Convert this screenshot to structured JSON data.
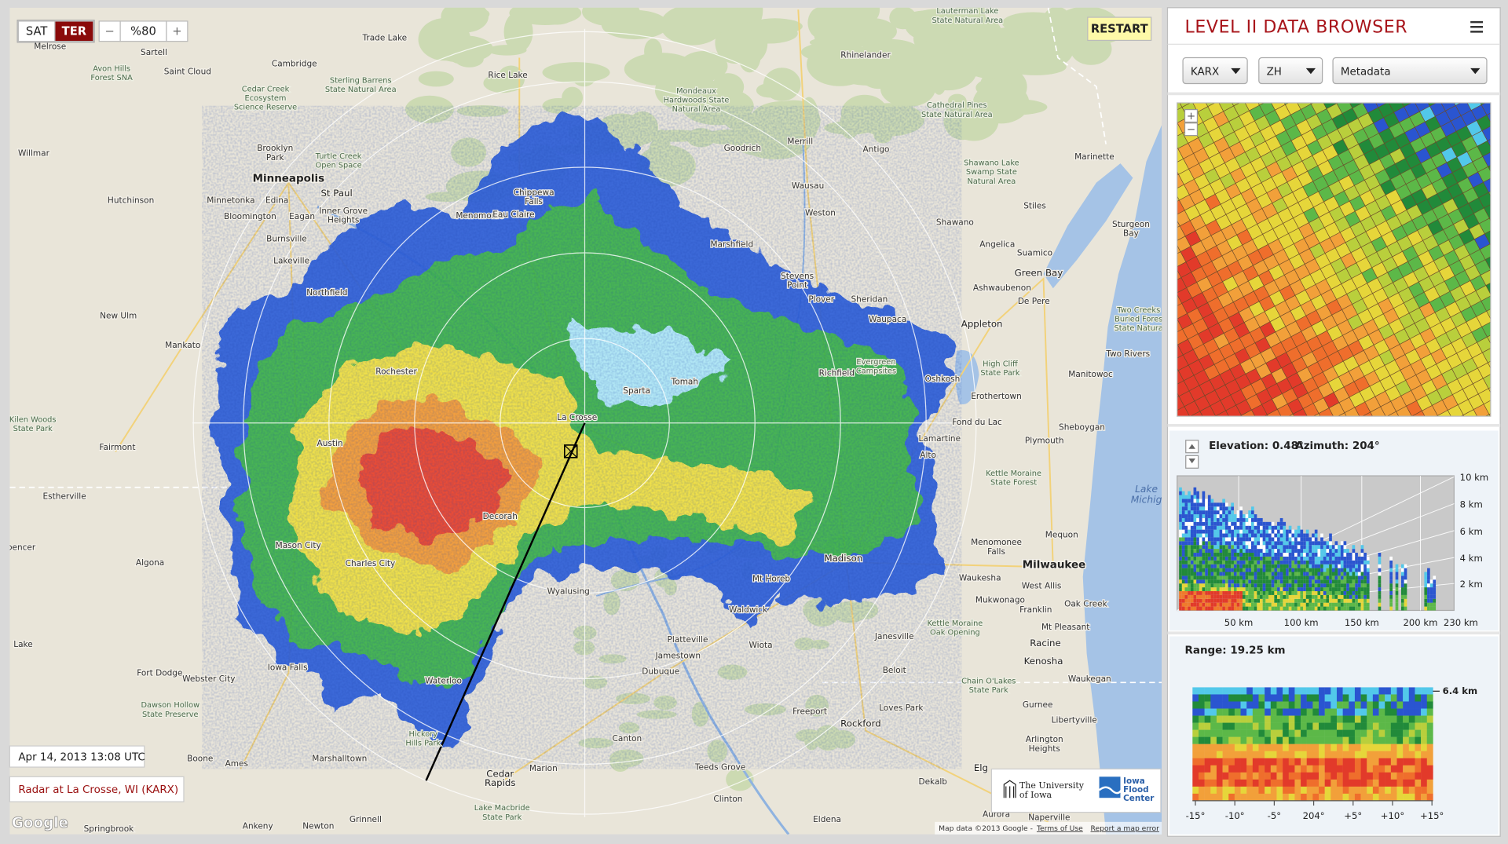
{
  "map": {
    "layers": [
      "SAT",
      "TER"
    ],
    "zoom_out": "−",
    "opacity": "%80",
    "zoom_in": "+",
    "restart": "RESTART",
    "labels": [
      [
        "Melrose"
      ],
      [
        "Sartell"
      ],
      [
        "Saint Cloud"
      ],
      [
        "Avon Hills",
        "Forest SNA"
      ],
      [
        "Trade Lake"
      ],
      [
        "Cambridge"
      ],
      [
        "Cedar Creek",
        "Ecosystem",
        "Science Reserve"
      ],
      [
        "Sterling Barrens",
        "State Natural Area"
      ],
      [
        "Rice Lake"
      ],
      [
        "Mondeaux",
        "Hardwoods State",
        "Natural Area"
      ],
      [
        "Lauterman Lake",
        "State Natural Area"
      ],
      [
        "Rhinelander"
      ],
      [
        "Cathedral Pines",
        "State Natural Area"
      ],
      [
        "Willmar"
      ],
      [
        "Brooklyn",
        "Park"
      ],
      [
        "Minneapolis"
      ],
      [
        "Turtle Creek",
        "Open Space"
      ],
      [
        "St Paul"
      ],
      [
        "Hutchinson"
      ],
      [
        "Minnetonka"
      ],
      [
        "Edina"
      ],
      [
        "Inner Grove",
        "Heights"
      ],
      [
        "Bloomington"
      ],
      [
        "Eagan"
      ],
      [
        "Burnsville"
      ],
      [
        "Lakeville"
      ],
      [
        "Northfield"
      ],
      [
        "New Ulm"
      ],
      [
        "Mankato"
      ],
      [
        "Goodrich"
      ],
      [
        "Merrill"
      ],
      [
        "Antigo"
      ],
      [
        "Wausau"
      ],
      [
        "Weston"
      ],
      [
        "Chippewa",
        "Falls"
      ],
      [
        "Menomonie"
      ],
      [
        "Eau Claire"
      ],
      [
        "Marshfield"
      ],
      [
        "Stevens",
        "Point"
      ],
      [
        "Plover"
      ],
      [
        "Shawano"
      ],
      [
        "Angelica"
      ],
      [
        "Suamico"
      ],
      [
        "Stiles"
      ],
      [
        "Sturgeon",
        "Bay"
      ],
      [
        "Marinette"
      ],
      [
        "Shawano Lake",
        "Swamp State",
        "Natural Area"
      ],
      [
        "Green Bay"
      ],
      [
        "Ashwaubenon"
      ],
      [
        "De Pere"
      ],
      [
        "Appleton"
      ],
      [
        "Waupaca"
      ],
      [
        "Sheridan"
      ],
      [
        "Two Creeks",
        "Buried Fores",
        "State Natura"
      ],
      [
        "Two Rivers"
      ],
      [
        "Manitowoc"
      ],
      [
        "High Cliff",
        "State Park"
      ],
      [
        "Oshkosh"
      ],
      [
        "Erothertown"
      ],
      [
        "Fond du Lac"
      ],
      [
        "Sheboygan"
      ],
      [
        "Richfield"
      ],
      [
        "Evergreen",
        "Campsites"
      ],
      [
        "Lamartine"
      ],
      [
        "Plymouth"
      ],
      [
        "Alto"
      ],
      [
        "Kettle Moraine",
        "State Forest"
      ],
      [
        "Lake",
        "Michig"
      ],
      [
        "Mequon"
      ],
      [
        "Menomonee",
        "Falls"
      ],
      [
        "Milwaukee"
      ],
      [
        "Waukesha"
      ],
      [
        "West Allis"
      ],
      [
        "Mukwonago"
      ],
      [
        "Franklin"
      ],
      [
        "Oak Creek"
      ],
      [
        "Mt Pleasant"
      ],
      [
        "Racine"
      ],
      [
        "Kettle Moraine",
        "Oak Opening"
      ],
      [
        "Kenosha"
      ],
      [
        "Chain O'Lakes",
        "State Park"
      ],
      [
        "Waukegan"
      ],
      [
        "Gurnee"
      ],
      [
        "Libertyville"
      ],
      [
        "Arlington",
        "Heights"
      ],
      [
        "Madison"
      ],
      [
        "Mt Horeb"
      ],
      [
        "Waldwick"
      ],
      [
        "Janesville"
      ],
      [
        "Beloit"
      ],
      [
        "Platteville"
      ],
      [
        "Wiota"
      ],
      [
        "Jamestown"
      ],
      [
        "Dubuque"
      ],
      [
        "Freeport"
      ],
      [
        "Rockford"
      ],
      [
        "Loves Park"
      ],
      [
        "Canton"
      ],
      [
        "Teeds Grove"
      ],
      [
        "Clinton"
      ],
      [
        "Dekalb"
      ],
      [
        "Elg"
      ],
      [
        "Aurora"
      ],
      [
        "Naperville"
      ],
      [
        "Eldena"
      ],
      [
        "Marion"
      ],
      [
        "Cedar",
        "Rapids"
      ],
      [
        "Lake Macbride",
        "State Park"
      ],
      [
        "Grinnell"
      ],
      [
        "Newton"
      ],
      [
        "Marshalltown"
      ],
      [
        "Ankeny"
      ],
      [
        "Ames"
      ],
      [
        "Boone"
      ],
      [
        "Dawson Hollow",
        "State Preserve"
      ],
      [
        "Webster City"
      ],
      [
        "Fort Dodge"
      ],
      [
        "Lake"
      ],
      [
        "Algona"
      ],
      [
        "pencer"
      ],
      [
        "Estherville"
      ],
      [
        "Fairmont"
      ],
      [
        "Kilen Woods",
        "State Park"
      ],
      [
        "La Crosse"
      ],
      [
        "Austin"
      ],
      [
        "Decorah"
      ],
      [
        "Mason City"
      ],
      [
        "Charles City"
      ],
      [
        "Iowa Falls"
      ],
      [
        "Waterloo"
      ],
      [
        "Hickory",
        "Hills Park"
      ],
      [
        "Wyalusing"
      ],
      [
        "Rochester"
      ],
      [
        "Sparta"
      ],
      [
        "Tomah"
      ],
      [
        "Springbrook"
      ]
    ],
    "timestamp": "Apr 14, 2013 13:08 UTC",
    "radar": "Radar at La Crosse, WI (KARX)",
    "logo_ui": [
      "The University",
      "of Iowa"
    ],
    "logo_ifc": [
      "Iowa",
      "Flood",
      "Center"
    ],
    "attribution": [
      "Map data ©2013 Google -",
      "Terms of Use",
      "Report a map error"
    ],
    "google": "Google"
  },
  "panel": {
    "title": "LEVEL II DATA BROWSER",
    "selects": [
      "KARX",
      "ZH",
      "Metadata"
    ],
    "zoom": [
      "+",
      "−"
    ],
    "rhi": {
      "elevation": "Elevation: 0.48°",
      "azimuth": "Azimuth: 204°",
      "yticks": [
        "10 km",
        "8 km",
        "6 km",
        "4 km",
        "2 km"
      ],
      "xticks": [
        "50 km",
        "100 km",
        "150 km",
        "200 km",
        "230 km"
      ]
    },
    "range": {
      "label": "Range: 19.25 km",
      "top": "6.4 km",
      "xticks": [
        "-15°",
        "-10°",
        "-5°",
        "204°",
        "+5°",
        "+10°",
        "+15°"
      ]
    }
  }
}
